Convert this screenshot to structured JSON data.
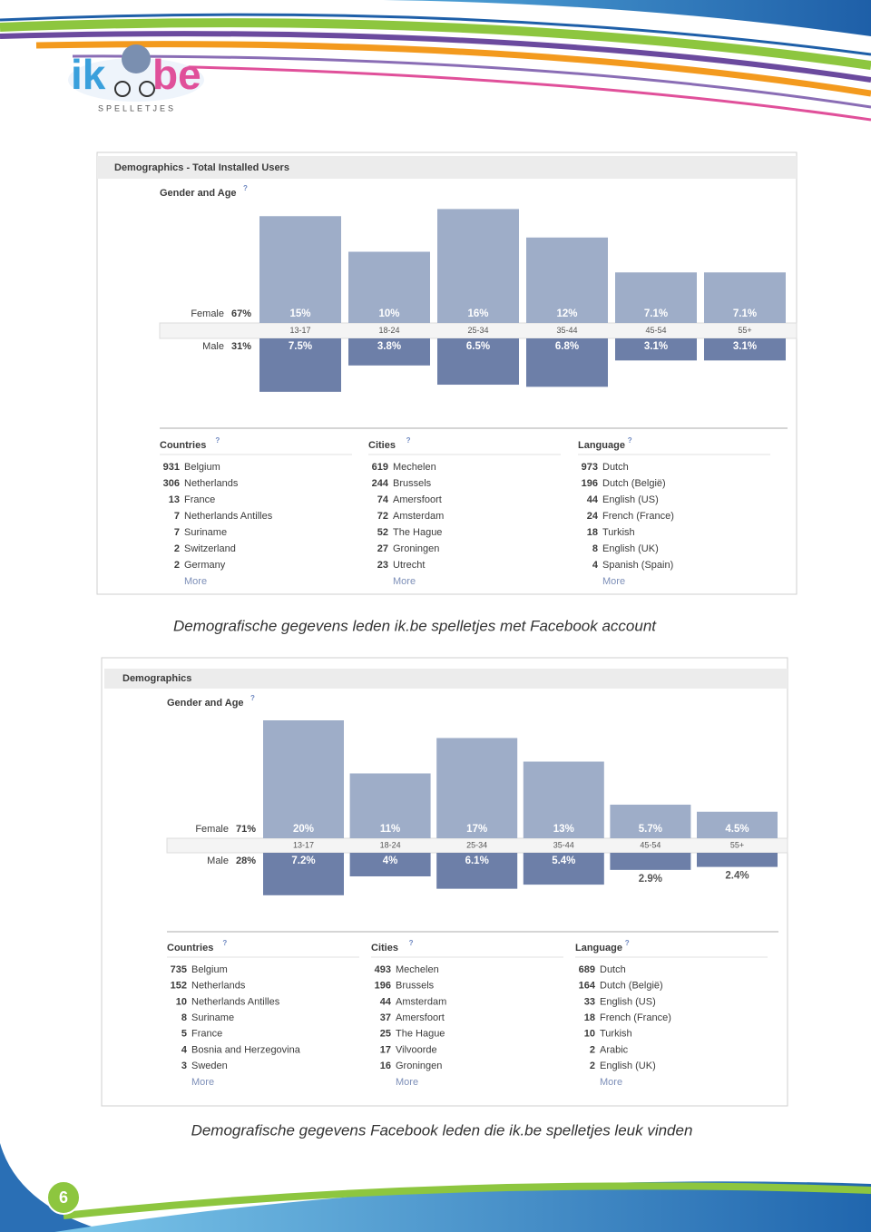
{
  "logo": {
    "left": "ik",
    "right": "be",
    "tagline": "SPELLETJES"
  },
  "help": "?",
  "panels": [
    {
      "title": "Demographics - Total Installed Users",
      "gender_age": {
        "heading": "Gender and Age",
        "female_label": "Female",
        "female_total": 67,
        "female_total_label": "67%",
        "male_label": "Male",
        "male_total": 31,
        "male_total_label": "31%",
        "categories": [
          "13-17",
          "18-24",
          "25-34",
          "35-44",
          "45-54",
          "55+"
        ],
        "female": [
          15,
          10,
          16,
          12,
          7.1,
          7.1
        ],
        "female_labels": [
          "15%",
          "10%",
          "16%",
          "12%",
          "7.1%",
          "7.1%"
        ],
        "male": [
          7.5,
          3.8,
          6.5,
          6.8,
          3.1,
          3.1
        ],
        "male_labels": [
          "7.5%",
          "3.8%",
          "6.5%",
          "6.8%",
          "3.1%",
          "3.1%"
        ]
      },
      "lists": [
        {
          "heading": "Countries",
          "more": "More",
          "items": [
            {
              "count": 931,
              "name": "Belgium"
            },
            {
              "count": 306,
              "name": "Netherlands"
            },
            {
              "count": 13,
              "name": "France"
            },
            {
              "count": 7,
              "name": "Netherlands Antilles"
            },
            {
              "count": 7,
              "name": "Suriname"
            },
            {
              "count": 2,
              "name": "Switzerland"
            },
            {
              "count": 2,
              "name": "Germany"
            }
          ]
        },
        {
          "heading": "Cities",
          "more": "More",
          "items": [
            {
              "count": 619,
              "name": "Mechelen"
            },
            {
              "count": 244,
              "name": "Brussels"
            },
            {
              "count": 74,
              "name": "Amersfoort"
            },
            {
              "count": 72,
              "name": "Amsterdam"
            },
            {
              "count": 52,
              "name": "The Hague"
            },
            {
              "count": 27,
              "name": "Groningen"
            },
            {
              "count": 23,
              "name": "Utrecht"
            }
          ]
        },
        {
          "heading": "Language",
          "more": "More",
          "items": [
            {
              "count": 973,
              "name": "Dutch"
            },
            {
              "count": 196,
              "name": "Dutch (België)"
            },
            {
              "count": 44,
              "name": "English (US)"
            },
            {
              "count": 24,
              "name": "French (France)"
            },
            {
              "count": 18,
              "name": "Turkish"
            },
            {
              "count": 8,
              "name": "English (UK)"
            },
            {
              "count": 4,
              "name": "Spanish (Spain)"
            }
          ]
        }
      ],
      "caption": "Demografische gegevens leden ik.be spelletjes met Facebook account"
    },
    {
      "title": "Demographics",
      "gender_age": {
        "heading": "Gender and Age",
        "female_label": "Female",
        "female_total": 71,
        "female_total_label": "71%",
        "male_label": "Male",
        "male_total": 28,
        "male_total_label": "28%",
        "categories": [
          "13-17",
          "18-24",
          "25-34",
          "35-44",
          "45-54",
          "55+"
        ],
        "female": [
          20,
          11,
          17,
          13,
          5.7,
          4.5
        ],
        "female_labels": [
          "20%",
          "11%",
          "17%",
          "13%",
          "5.7%",
          "4.5%"
        ],
        "male": [
          7.2,
          4,
          6.1,
          5.4,
          2.9,
          2.4
        ],
        "male_labels": [
          "7.2%",
          "4%",
          "6.1%",
          "5.4%",
          "2.9%",
          "2.4%"
        ]
      },
      "lists": [
        {
          "heading": "Countries",
          "more": "More",
          "items": [
            {
              "count": 735,
              "name": "Belgium"
            },
            {
              "count": 152,
              "name": "Netherlands"
            },
            {
              "count": 10,
              "name": "Netherlands Antilles"
            },
            {
              "count": 8,
              "name": "Suriname"
            },
            {
              "count": 5,
              "name": "France"
            },
            {
              "count": 4,
              "name": "Bosnia and Herzegovina"
            },
            {
              "count": 3,
              "name": "Sweden"
            }
          ]
        },
        {
          "heading": "Cities",
          "more": "More",
          "items": [
            {
              "count": 493,
              "name": "Mechelen"
            },
            {
              "count": 196,
              "name": "Brussels"
            },
            {
              "count": 44,
              "name": "Amsterdam"
            },
            {
              "count": 37,
              "name": "Amersfoort"
            },
            {
              "count": 25,
              "name": "The Hague"
            },
            {
              "count": 17,
              "name": "Vilvoorde"
            },
            {
              "count": 16,
              "name": "Groningen"
            }
          ]
        },
        {
          "heading": "Language",
          "more": "More",
          "items": [
            {
              "count": 689,
              "name": "Dutch"
            },
            {
              "count": 164,
              "name": "Dutch (België)"
            },
            {
              "count": 33,
              "name": "English (US)"
            },
            {
              "count": 18,
              "name": "French (France)"
            },
            {
              "count": 10,
              "name": "Turkish"
            },
            {
              "count": 2,
              "name": "Arabic"
            },
            {
              "count": 2,
              "name": "English (UK)"
            }
          ]
        }
      ],
      "caption": "Demografische gegevens Facebook leden die ik.be spelletjes leuk vinden"
    }
  ],
  "page_number": 6
}
